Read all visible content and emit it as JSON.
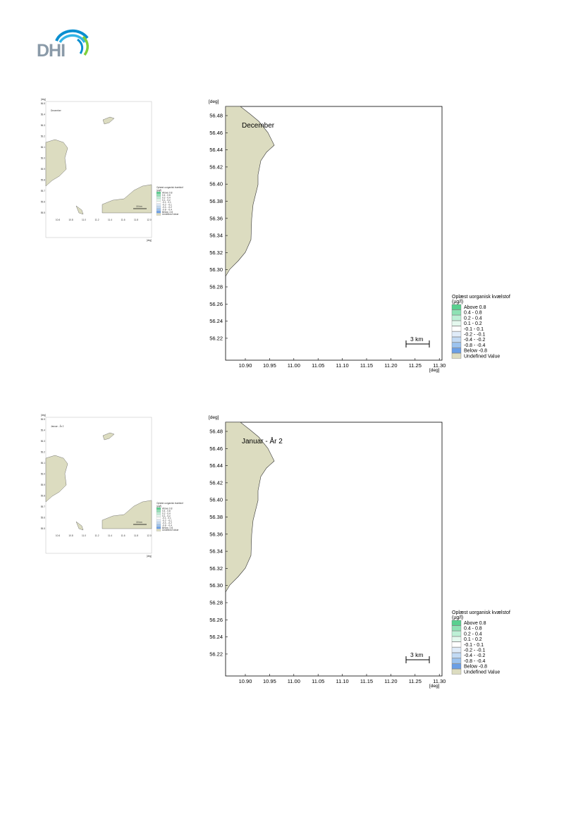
{
  "logo": {
    "text": "DHI",
    "colors": [
      "#0a8fd0",
      "#33b4e6",
      "#7fcf3a"
    ]
  },
  "legend": {
    "title": [
      "Oplæst uorganisk kvælstof",
      "(µg/l)"
    ],
    "entries": [
      {
        "label": "Above  0.8",
        "color": "#59d08f"
      },
      {
        "label": "0.4 -  0.8",
        "color": "#8ee2b4"
      },
      {
        "label": "0.2 -  0.4",
        "color": "#bdf0d6"
      },
      {
        "label": "0.1 -  0.2",
        "color": "#e4f8ee"
      },
      {
        "label": "-0.1 -  0.1",
        "color": "#ffffff"
      },
      {
        "label": "-0.2 -  -0.1",
        "color": "#e0ecf9"
      },
      {
        "label": "-0.4 -  -0.2",
        "color": "#c2daf4"
      },
      {
        "label": "-0.8 -  -0.4",
        "color": "#9cc3ef"
      },
      {
        "label": "Below -0.8",
        "color": "#6a9fe6"
      },
      {
        "label": "Undefined Value",
        "color": "#dcdcc0"
      }
    ]
  },
  "axes": {
    "unit": "[deg]",
    "y_ticks": [
      "56.48",
      "56.46",
      "56.44",
      "56.42",
      "56.40",
      "56.38",
      "56.36",
      "56.34",
      "56.32",
      "56.30",
      "56.28",
      "56.26",
      "56.24",
      "56.22"
    ],
    "x_ticks": [
      "10.90",
      "10.95",
      "11.00",
      "11.05",
      "11.10",
      "11.15",
      "11.20",
      "11.25",
      "11.30"
    ]
  },
  "scale_bar": {
    "label": "3 km"
  },
  "land_color": "#dcdcc0",
  "maps": [
    {
      "title": "December",
      "thumb_title": "December",
      "thumb_scale": "15 km"
    },
    {
      "title": "Januar - År 2",
      "thumb_title": "Januar - År 2",
      "thumb_scale": "15 km"
    }
  ]
}
